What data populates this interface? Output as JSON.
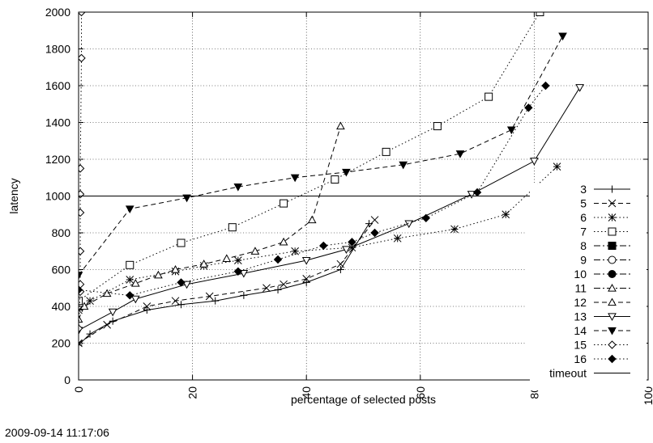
{
  "footer": {
    "timestamp": "2009-09-14 11:17:06"
  },
  "chart_data": {
    "type": "line",
    "title": "",
    "xlabel": "percentage of selected posts",
    "ylabel": "latency",
    "xlim": [
      0,
      100
    ],
    "ylim": [
      0,
      2000
    ],
    "x_ticks": [
      0,
      20,
      40,
      60,
      80,
      100
    ],
    "y_ticks": [
      0,
      200,
      400,
      600,
      800,
      1000,
      1200,
      1400,
      1600,
      1800,
      2000
    ],
    "grid": true,
    "legend_position": "bottom-right",
    "series": [
      {
        "name": "3",
        "dash": "solid",
        "marker": "plus",
        "points": [
          [
            0,
            190
          ],
          [
            2,
            250
          ],
          [
            6,
            320
          ],
          [
            12,
            380
          ],
          [
            18,
            410
          ],
          [
            24,
            430
          ],
          [
            29,
            460
          ],
          [
            35,
            490
          ],
          [
            40,
            530
          ],
          [
            46,
            600
          ],
          [
            51,
            850
          ]
        ]
      },
      {
        "name": "5",
        "dash": "dash",
        "marker": "x",
        "points": [
          [
            0,
            200
          ],
          [
            5,
            300
          ],
          [
            12,
            400
          ],
          [
            17,
            430
          ],
          [
            23,
            455
          ],
          [
            33,
            500
          ],
          [
            36,
            520
          ],
          [
            40,
            550
          ],
          [
            46,
            630
          ],
          [
            52,
            870
          ]
        ]
      },
      {
        "name": "6",
        "dash": "dot",
        "marker": "star",
        "points": [
          [
            0,
            380
          ],
          [
            2,
            430
          ],
          [
            9,
            545
          ],
          [
            17,
            590
          ],
          [
            22,
            620
          ],
          [
            28,
            650
          ],
          [
            38,
            700
          ],
          [
            48,
            720
          ],
          [
            56,
            770
          ],
          [
            66,
            820
          ],
          [
            75,
            900
          ],
          [
            84,
            1160
          ]
        ]
      },
      {
        "name": "7",
        "dash": "dot",
        "marker": "square",
        "points": [
          [
            0,
            430
          ],
          [
            9,
            625
          ],
          [
            18,
            745
          ],
          [
            27,
            830
          ],
          [
            36,
            960
          ],
          [
            45,
            1090
          ],
          [
            54,
            1240
          ],
          [
            63,
            1380
          ],
          [
            72,
            1540
          ],
          [
            81,
            2000
          ]
        ]
      },
      {
        "name": "12",
        "dash": "dash",
        "marker": "triangle-up",
        "points": [
          [
            0,
            330
          ],
          [
            1,
            400
          ],
          [
            5,
            470
          ],
          [
            10,
            525
          ],
          [
            14,
            570
          ],
          [
            17,
            600
          ],
          [
            22,
            630
          ],
          [
            26,
            660
          ],
          [
            31,
            700
          ],
          [
            36,
            750
          ],
          [
            41,
            870
          ],
          [
            46,
            1380
          ]
        ]
      },
      {
        "name": "13",
        "dash": "solid",
        "marker": "triangle-down",
        "points": [
          [
            0,
            270
          ],
          [
            6,
            370
          ],
          [
            10,
            440
          ],
          [
            19,
            520
          ],
          [
            29,
            580
          ],
          [
            40,
            650
          ],
          [
            47,
            710
          ],
          [
            58,
            850
          ],
          [
            69,
            1010
          ],
          [
            80,
            1190
          ],
          [
            88,
            1590
          ]
        ]
      },
      {
        "name": "14",
        "dash": "dash",
        "marker": "triangle-down-filled",
        "points": [
          [
            0,
            570
          ],
          [
            9,
            930
          ],
          [
            19,
            990
          ],
          [
            28,
            1050
          ],
          [
            38,
            1100
          ],
          [
            47,
            1130
          ],
          [
            57,
            1170
          ],
          [
            67,
            1230
          ],
          [
            76,
            1360
          ],
          [
            85,
            1870
          ]
        ]
      },
      {
        "name": "15",
        "dash": "dot",
        "marker": "diamond",
        "points": [
          [
            0,
            280
          ],
          [
            0.3,
            480
          ],
          [
            0.3,
            520
          ],
          [
            0.3,
            700
          ],
          [
            0.3,
            910
          ],
          [
            0.3,
            1010
          ],
          [
            0.3,
            1150
          ],
          [
            0.5,
            1750
          ],
          [
            0.5,
            2000
          ]
        ]
      },
      {
        "name": "16",
        "dash": "dot",
        "marker": "diamond-filled",
        "points": [
          [
            0,
            490
          ],
          [
            9,
            460
          ],
          [
            18,
            530
          ],
          [
            28,
            590
          ],
          [
            35,
            655
          ],
          [
            43,
            730
          ],
          [
            48,
            750
          ],
          [
            52,
            800
          ],
          [
            61,
            880
          ],
          [
            70,
            1020
          ],
          [
            79,
            1480
          ],
          [
            82,
            1600
          ]
        ]
      }
    ],
    "legend_only": [
      {
        "name": "8",
        "dash": "dashdot",
        "marker": "square-filled"
      },
      {
        "name": "9",
        "dash": "dashdot",
        "marker": "circle"
      },
      {
        "name": "10",
        "dash": "dashdot",
        "marker": "circle-filled"
      },
      {
        "name": "11",
        "dash": "dashdot",
        "marker": "triangle-up"
      }
    ],
    "legend_order": [
      "3",
      "5",
      "6",
      "7",
      "8",
      "9",
      "10",
      "11",
      "12",
      "13",
      "14",
      "15",
      "16",
      "timeout"
    ],
    "reference_lines": [
      {
        "name": "timeout",
        "y": 1000
      }
    ]
  }
}
